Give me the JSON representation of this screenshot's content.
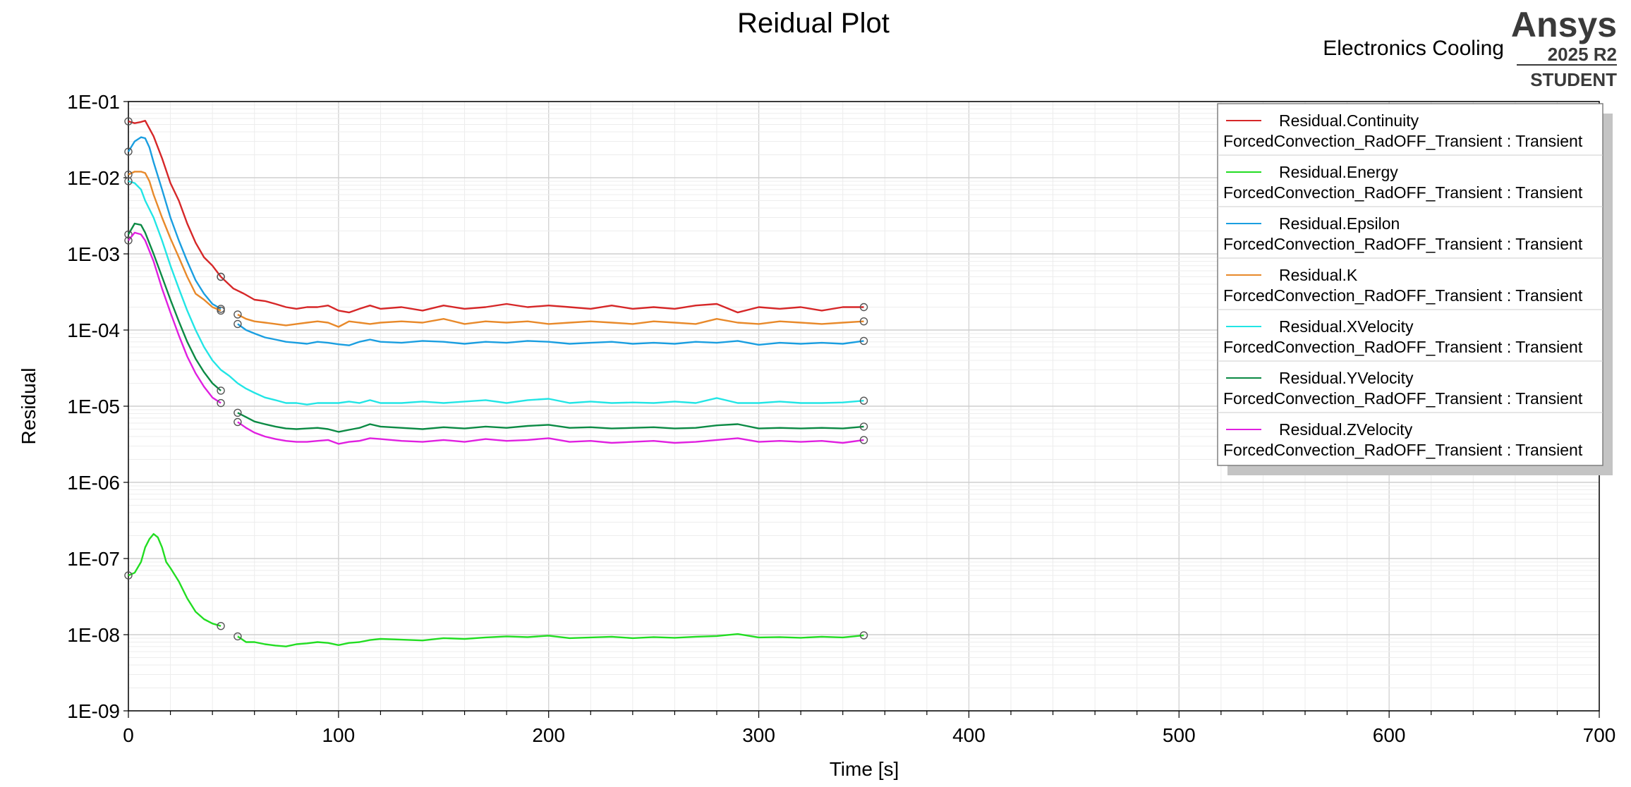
{
  "header": {
    "app_name": "Electronics Cooling",
    "brand": "Ansys",
    "version": "2025 R2",
    "edition": "STUDENT"
  },
  "chart_data": {
    "type": "line",
    "title": "Reidual Plot",
    "xlabel": "Time [s]",
    "ylabel": "Residual",
    "xlim": [
      0,
      700
    ],
    "ylim": [
      1e-09,
      0.1
    ],
    "yscale": "log",
    "grid": true,
    "legend_position": "top-right",
    "x_ticks": [
      "0",
      "100",
      "200",
      "300",
      "400",
      "500",
      "600",
      "700"
    ],
    "y_ticks": [
      "1E-01",
      "1E-02",
      "1E-03",
      "1E-04",
      "1E-05",
      "1E-06",
      "1E-07",
      "1E-08",
      "1E-09"
    ],
    "series_group": "ForcedConvection_RadOFF_Transient : Transient",
    "series": [
      {
        "name": "Residual.Continuity",
        "color": "#d62728",
        "segments": [
          {
            "x": [
              0,
              3,
              6,
              8,
              12,
              16,
              20,
              24,
              28,
              32,
              36,
              40,
              44
            ],
            "y": [
              0.055,
              0.052,
              0.054,
              0.056,
              0.035,
              0.018,
              0.0085,
              0.005,
              0.0025,
              0.0014,
              0.0009,
              0.0007,
              0.0005
            ]
          },
          {
            "x": [
              44,
              50,
              55,
              60,
              65,
              70,
              75,
              80,
              85,
              90,
              95,
              100,
              105,
              110,
              115,
              120,
              130,
              140,
              150,
              160,
              170,
              180,
              190,
              200,
              210,
              220,
              230,
              240,
              250,
              260,
              270,
              280,
              290,
              300,
              310,
              320,
              330,
              340,
              350
            ],
            "y": [
              0.0005,
              0.00035,
              0.0003,
              0.00025,
              0.00024,
              0.00022,
              0.0002,
              0.00019,
              0.0002,
              0.0002,
              0.00021,
              0.00018,
              0.00017,
              0.00019,
              0.00021,
              0.00019,
              0.0002,
              0.00018,
              0.00021,
              0.00019,
              0.0002,
              0.00022,
              0.0002,
              0.00021,
              0.0002,
              0.00019,
              0.00021,
              0.00019,
              0.0002,
              0.00019,
              0.00021,
              0.00022,
              0.00017,
              0.0002,
              0.00019,
              0.0002,
              0.00018,
              0.0002,
              0.0002
            ]
          }
        ]
      },
      {
        "name": "Residual.Energy",
        "color": "#22dd22",
        "segments": [
          {
            "x": [
              0,
              3,
              6,
              8,
              10,
              12,
              14,
              16,
              18,
              20,
              24,
              28,
              32,
              36,
              40,
              44
            ],
            "y": [
              6e-08,
              6.5e-08,
              9e-08,
              1.4e-07,
              1.8e-07,
              2.1e-07,
              1.9e-07,
              1.4e-07,
              9e-08,
              7.5e-08,
              5e-08,
              3e-08,
              2e-08,
              1.6e-08,
              1.4e-08,
              1.3e-08
            ]
          },
          {
            "x": [
              52,
              56,
              60,
              65,
              70,
              75,
              80,
              85,
              90,
              95,
              100,
              105,
              110,
              115,
              120,
              130,
              140,
              150,
              160,
              170,
              180,
              190,
              200,
              210,
              220,
              230,
              240,
              250,
              260,
              270,
              280,
              290,
              300,
              310,
              320,
              330,
              340,
              350
            ],
            "y": [
              9.5e-09,
              8e-09,
              8e-09,
              7.5e-09,
              7.2e-09,
              7e-09,
              7.5e-09,
              7.7e-09,
              8e-09,
              7.8e-09,
              7.3e-09,
              7.8e-09,
              8e-09,
              8.5e-09,
              8.8e-09,
              8.6e-09,
              8.4e-09,
              9e-09,
              8.8e-09,
              9.2e-09,
              9.5e-09,
              9.3e-09,
              9.7e-09,
              9e-09,
              9.2e-09,
              9.4e-09,
              9e-09,
              9.3e-09,
              9.1e-09,
              9.4e-09,
              9.6e-09,
              1.02e-08,
              9.2e-09,
              9.3e-09,
              9.1e-09,
              9.4e-09,
              9.2e-09,
              9.8e-09
            ]
          }
        ]
      },
      {
        "name": "Residual.Epsilon",
        "color": "#1a9ee0",
        "segments": [
          {
            "x": [
              0,
              3,
              6,
              8,
              10,
              12,
              16,
              20,
              24,
              28,
              32,
              36,
              40,
              44
            ],
            "y": [
              0.022,
              0.03,
              0.034,
              0.033,
              0.025,
              0.016,
              0.007,
              0.003,
              0.0015,
              0.0008,
              0.00045,
              0.0003,
              0.00022,
              0.00019
            ]
          },
          {
            "x": [
              52,
              56,
              60,
              65,
              70,
              75,
              80,
              85,
              90,
              95,
              100,
              105,
              110,
              115,
              120,
              130,
              140,
              150,
              160,
              170,
              180,
              190,
              200,
              210,
              220,
              230,
              240,
              250,
              260,
              270,
              280,
              290,
              300,
              310,
              320,
              330,
              340,
              350
            ],
            "y": [
              0.00012,
              0.0001,
              9e-05,
              8e-05,
              7.5e-05,
              7e-05,
              6.8e-05,
              6.6e-05,
              7e-05,
              6.8e-05,
              6.5e-05,
              6.3e-05,
              7e-05,
              7.5e-05,
              7e-05,
              6.8e-05,
              7.2e-05,
              7e-05,
              6.6e-05,
              7e-05,
              6.8e-05,
              7.2e-05,
              7e-05,
              6.6e-05,
              6.8e-05,
              7e-05,
              6.6e-05,
              6.8e-05,
              6.6e-05,
              7e-05,
              6.8e-05,
              7.2e-05,
              6.4e-05,
              6.8e-05,
              6.6e-05,
              6.8e-05,
              6.6e-05,
              7.2e-05
            ]
          }
        ]
      },
      {
        "name": "Residual.K",
        "color": "#e8892a",
        "segments": [
          {
            "x": [
              0,
              3,
              6,
              8,
              10,
              12,
              16,
              20,
              24,
              28,
              32,
              36,
              40,
              44
            ],
            "y": [
              0.011,
              0.012,
              0.012,
              0.0115,
              0.009,
              0.006,
              0.003,
              0.0016,
              0.0009,
              0.0005,
              0.0003,
              0.00025,
              0.0002,
              0.00018
            ]
          },
          {
            "x": [
              52,
              56,
              60,
              65,
              70,
              75,
              80,
              85,
              90,
              95,
              100,
              105,
              110,
              115,
              120,
              130,
              140,
              150,
              160,
              170,
              180,
              190,
              200,
              210,
              220,
              230,
              240,
              250,
              260,
              270,
              280,
              290,
              300,
              310,
              320,
              330,
              340,
              350
            ],
            "y": [
              0.00016,
              0.00014,
              0.00013,
              0.000125,
              0.00012,
              0.000115,
              0.00012,
              0.000125,
              0.00013,
              0.000125,
              0.00011,
              0.00013,
              0.000125,
              0.00012,
              0.000125,
              0.00013,
              0.000125,
              0.00014,
              0.00012,
              0.00013,
              0.000125,
              0.00013,
              0.00012,
              0.000125,
              0.00013,
              0.000125,
              0.00012,
              0.00013,
              0.000125,
              0.00012,
              0.00014,
              0.000125,
              0.00012,
              0.00013,
              0.000125,
              0.00012,
              0.000125,
              0.00013
            ]
          }
        ]
      },
      {
        "name": "Residual.XVelocity",
        "color": "#22e5e5",
        "segments": [
          {
            "x": [
              0,
              3,
              6,
              8,
              12,
              16,
              20,
              24,
              28,
              32,
              36,
              40,
              44,
              48,
              52,
              56,
              60,
              65,
              70,
              75,
              80,
              85,
              90,
              95,
              100,
              105,
              110,
              115,
              120,
              130,
              140,
              150,
              160,
              170,
              180,
              190,
              200,
              210,
              220,
              230,
              240,
              250,
              260,
              270,
              280,
              290,
              300,
              310,
              320,
              330,
              340,
              350
            ],
            "y": [
              0.009,
              0.0085,
              0.007,
              0.005,
              0.003,
              0.0015,
              0.0007,
              0.00035,
              0.00018,
              0.0001,
              6e-05,
              4e-05,
              3e-05,
              2.5e-05,
              2e-05,
              1.7e-05,
              1.5e-05,
              1.3e-05,
              1.2e-05,
              1.1e-05,
              1.1e-05,
              1.05e-05,
              1.1e-05,
              1.1e-05,
              1.1e-05,
              1.15e-05,
              1.1e-05,
              1.2e-05,
              1.1e-05,
              1.1e-05,
              1.15e-05,
              1.1e-05,
              1.15e-05,
              1.2e-05,
              1.1e-05,
              1.2e-05,
              1.25e-05,
              1.1e-05,
              1.15e-05,
              1.1e-05,
              1.12e-05,
              1.1e-05,
              1.15e-05,
              1.1e-05,
              1.28e-05,
              1.1e-05,
              1.1e-05,
              1.15e-05,
              1.1e-05,
              1.1e-05,
              1.12e-05,
              1.18e-05
            ]
          }
        ]
      },
      {
        "name": "Residual.YVelocity",
        "color": "#0b8a44",
        "segments": [
          {
            "x": [
              0,
              3,
              6,
              8,
              12,
              16,
              20,
              24,
              28,
              32,
              36,
              40,
              44
            ],
            "y": [
              0.0018,
              0.0025,
              0.0024,
              0.0019,
              0.001,
              0.0005,
              0.00025,
              0.00013,
              7e-05,
              4.2e-05,
              2.8e-05,
              2e-05,
              1.6e-05
            ]
          },
          {
            "x": [
              52,
              56,
              60,
              65,
              70,
              75,
              80,
              85,
              90,
              95,
              100,
              105,
              110,
              115,
              120,
              130,
              140,
              150,
              160,
              170,
              180,
              190,
              200,
              210,
              220,
              230,
              240,
              250,
              260,
              270,
              280,
              290,
              300,
              310,
              320,
              330,
              340,
              350
            ],
            "y": [
              8.2e-06,
              7.2e-06,
              6.3e-06,
              5.8e-06,
              5.4e-06,
              5.1e-06,
              5e-06,
              5.1e-06,
              5.2e-06,
              5e-06,
              4.6e-06,
              4.9e-06,
              5.2e-06,
              5.8e-06,
              5.4e-06,
              5.2e-06,
              5e-06,
              5.3e-06,
              5.1e-06,
              5.4e-06,
              5.2e-06,
              5.5e-06,
              5.7e-06,
              5.2e-06,
              5.3e-06,
              5.1e-06,
              5.2e-06,
              5.3e-06,
              5.1e-06,
              5.2e-06,
              5.6e-06,
              5.8e-06,
              5.1e-06,
              5.2e-06,
              5.1e-06,
              5.2e-06,
              5.1e-06,
              5.4e-06
            ]
          }
        ]
      },
      {
        "name": "Residual.ZVelocity",
        "color": "#e020e0",
        "segments": [
          {
            "x": [
              0,
              3,
              6,
              8,
              12,
              16,
              20,
              24,
              28,
              32,
              36,
              40,
              44
            ],
            "y": [
              0.0015,
              0.0019,
              0.0018,
              0.0015,
              0.0008,
              0.00035,
              0.00017,
              8.5e-05,
              4.5e-05,
              2.7e-05,
              1.8e-05,
              1.3e-05,
              1.1e-05
            ]
          },
          {
            "x": [
              52,
              56,
              60,
              65,
              70,
              75,
              80,
              85,
              90,
              95,
              100,
              105,
              110,
              115,
              120,
              130,
              140,
              150,
              160,
              170,
              180,
              190,
              200,
              210,
              220,
              230,
              240,
              250,
              260,
              270,
              280,
              290,
              300,
              310,
              320,
              330,
              340,
              350
            ],
            "y": [
              6.2e-06,
              5.2e-06,
              4.5e-06,
              4e-06,
              3.7e-06,
              3.5e-06,
              3.4e-06,
              3.4e-06,
              3.5e-06,
              3.6e-06,
              3.2e-06,
              3.4e-06,
              3.5e-06,
              3.8e-06,
              3.7e-06,
              3.5e-06,
              3.4e-06,
              3.6e-06,
              3.4e-06,
              3.7e-06,
              3.5e-06,
              3.6e-06,
              3.8e-06,
              3.4e-06,
              3.5e-06,
              3.3e-06,
              3.4e-06,
              3.5e-06,
              3.3e-06,
              3.4e-06,
              3.6e-06,
              3.8e-06,
              3.4e-06,
              3.5e-06,
              3.4e-06,
              3.5e-06,
              3.3e-06,
              3.6e-06
            ]
          }
        ]
      }
    ]
  }
}
